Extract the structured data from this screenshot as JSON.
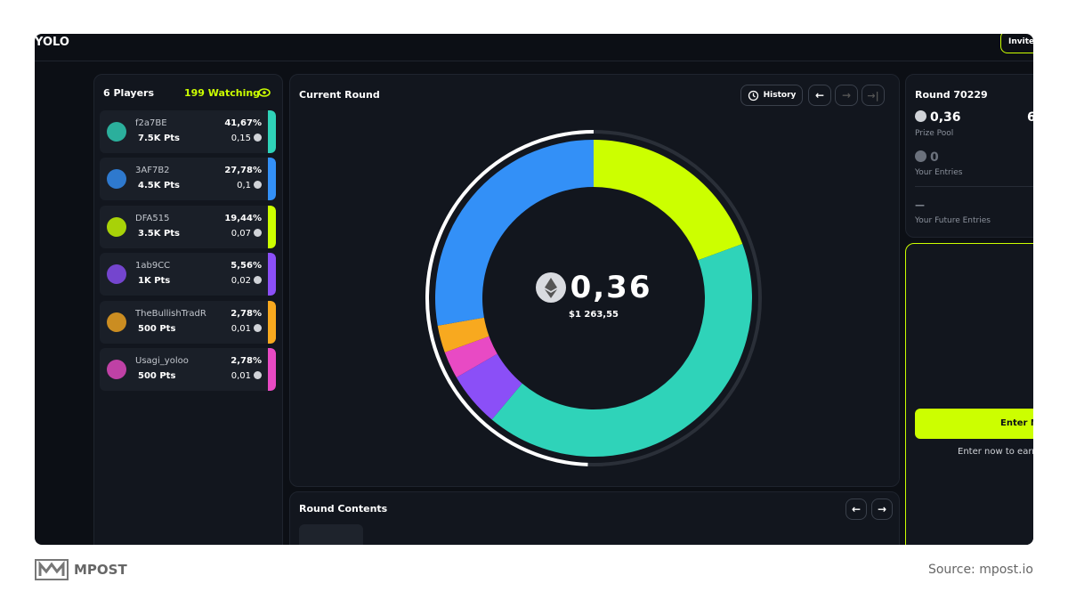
{
  "header": {
    "logo": "YOLO",
    "invite": "Invite"
  },
  "players_panel": {
    "count": "6 Players",
    "watching": "199 Watching",
    "players": [
      {
        "name": "f2a7BE",
        "points": "7.5K Pts",
        "pct": 41.67,
        "pct_label": "41,67%",
        "entry": "0,15",
        "color": "#2fd3b9"
      },
      {
        "name": "3AF7B2",
        "points": "4.5K Pts",
        "pct": 27.78,
        "pct_label": "27,78%",
        "entry": "0,1",
        "color": "#3390f7"
      },
      {
        "name": "DFA515",
        "points": "3.5K Pts",
        "pct": 19.44,
        "pct_label": "19,44%",
        "entry": "0,07",
        "color": "#ccff00"
      },
      {
        "name": "1ab9CC",
        "points": "1K Pts",
        "pct": 5.56,
        "pct_label": "5,56%",
        "entry": "0,02",
        "color": "#8b4ff7"
      },
      {
        "name": "TheBullishTradR",
        "points": "500 Pts",
        "pct": 2.78,
        "pct_label": "2,78%",
        "entry": "0,01",
        "color": "#f8a91f"
      },
      {
        "name": "Usagi_yoloo",
        "points": "500 Pts",
        "pct": 2.78,
        "pct_label": "2,78%",
        "entry": "0,01",
        "color": "#e84ac4"
      }
    ]
  },
  "round": {
    "title": "Current Round",
    "history": "History",
    "amount": "0,36",
    "usd": "$1 263,55"
  },
  "contents": {
    "title": "Round Contents"
  },
  "side": {
    "round": "Round 70229",
    "prize": "0,36",
    "prize_label": "Prize Pool",
    "players_count": "6",
    "entries": "0",
    "entries_label": "Your Entries",
    "future": "—",
    "future_label": "Your Future Entries"
  },
  "enter": {
    "button": "Enter N",
    "note": "Enter now to earn"
  },
  "footer": {
    "brand": "MPOST",
    "source": "Source: mpost.io"
  }
}
